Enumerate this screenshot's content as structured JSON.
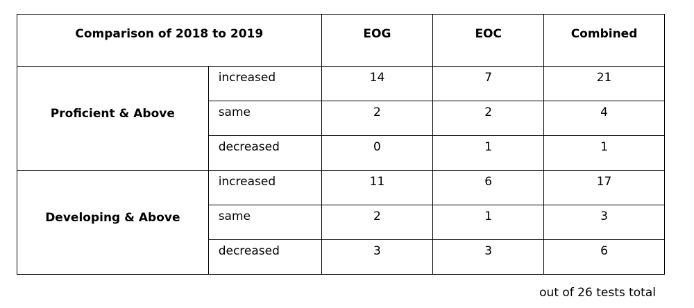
{
  "table": {
    "header": [
      "Comparison of 2018 to 2019",
      "EOG",
      "EOC",
      "Combined"
    ],
    "groups": [
      {
        "label": "Proficient & Above",
        "rows": [
          [
            "increased",
            14,
            7,
            21
          ],
          [
            "same",
            2,
            2,
            4
          ],
          [
            "decreased",
            0,
            1,
            1
          ]
        ]
      },
      {
        "label": "Developing & Above",
        "rows": [
          [
            "increased",
            11,
            6,
            17
          ],
          [
            "same",
            2,
            1,
            3
          ],
          [
            "decreased",
            3,
            3,
            6
          ]
        ]
      }
    ]
  },
  "footnote": "out of 26 tests total"
}
